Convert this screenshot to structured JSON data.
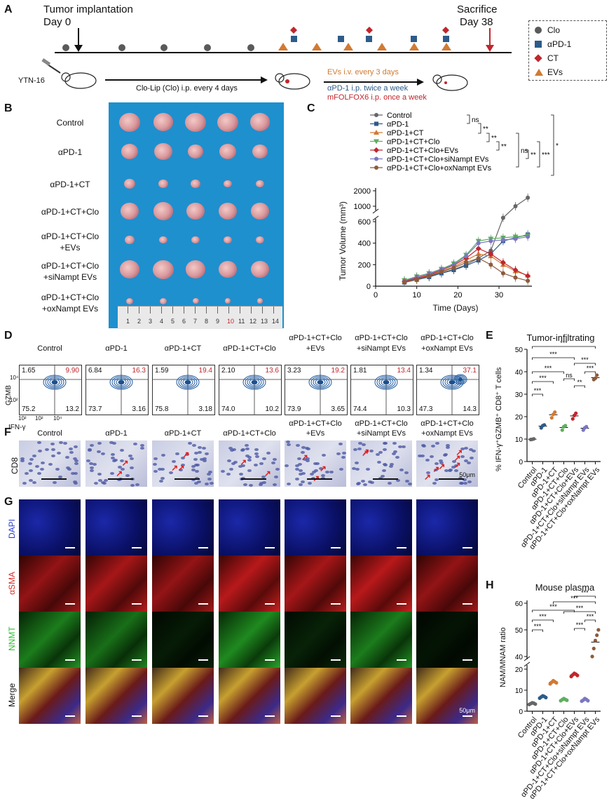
{
  "panels": {
    "A": "A",
    "B": "B",
    "C": "C",
    "D": "D",
    "E": "E",
    "F": "F",
    "G": "G",
    "H": "H"
  },
  "timeline": {
    "start_label1": "Tumor implantation",
    "start_label2": "Day 0",
    "end_label1": "Sacrifice",
    "end_label2": "Day 38",
    "cell_line": "YTN-16",
    "clo_text": "Clo-Lip (Clo) i.p. every 4 days",
    "evs_text": "EVs i.v. every 3 days",
    "pd1_text": "αPD-1 i.p. twice a week",
    "mfolfox_text": "mFOLFOX6 i.p. once a week",
    "colors": {
      "clo": "#5a5a5a",
      "pd1": "#2d5b8a",
      "ct": "#c0262d",
      "evs": "#d27a33",
      "arrow": "#c0262d"
    }
  },
  "legend": [
    {
      "label": "Clo",
      "shape": "circle-icon",
      "color": "#5a5a5a"
    },
    {
      "label": "αPD-1",
      "shape": "square-icon",
      "color": "#2d5b8a"
    },
    {
      "label": "CT",
      "shape": "diamond-icon",
      "color": "#c0262d"
    },
    {
      "label": "EVs",
      "shape": "triangle-icon",
      "color": "#d27a33"
    }
  ],
  "groups": [
    "Control",
    "αPD-1",
    "αPD-1+CT",
    "αPD-1+CT+Clo",
    "αPD-1+CT+Clo +EVs",
    "αPD-1+CT+Clo +siNampt EVs",
    "αPD-1+CT+Clo +oxNampt EVs"
  ],
  "groupsB": [
    {
      "l1": "Control",
      "l2": ""
    },
    {
      "l1": "αPD-1",
      "l2": ""
    },
    {
      "l1": "αPD-1+CT",
      "l2": ""
    },
    {
      "l1": "αPD-1+CT+Clo",
      "l2": ""
    },
    {
      "l1": "αPD-1+CT+Clo",
      "l2": "+EVs"
    },
    {
      "l1": "αPD-1+CT+Clo",
      "l2": "+siNampt EVs"
    },
    {
      "l1": "αPD-1+CT+Clo",
      "l2": "+oxNampt EVs"
    }
  ],
  "ruler_ticks": [
    "1",
    "2",
    "3",
    "4",
    "5",
    "6",
    "7",
    "8",
    "9",
    "10",
    "11",
    "12",
    "13",
    "14"
  ],
  "chart_data": [
    {
      "id": "C",
      "type": "line",
      "xlabel": "Time (Days)",
      "ylabel": "Tumor Volume (mm³)",
      "xlim": [
        0,
        38
      ],
      "x_ticks": [
        "0",
        "10",
        "20",
        "30"
      ],
      "y_ticks_low": [
        "0",
        "200",
        "400",
        "600"
      ],
      "y_ticks_high": [
        "1000",
        "2000"
      ],
      "x": [
        7,
        10,
        13,
        16,
        19,
        22,
        25,
        28,
        31,
        34,
        37
      ],
      "series": [
        {
          "name": "Control",
          "color": "#666666",
          "marker": "circle",
          "values": [
            40,
            65,
            90,
            125,
            155,
            200,
            260,
            330,
            700,
            1000,
            1550
          ]
        },
        {
          "name": "αPD-1",
          "color": "#2d5b8a",
          "marker": "square",
          "values": [
            35,
            60,
            85,
            120,
            150,
            190,
            240,
            300,
            420,
            450,
            480
          ]
        },
        {
          "name": "αPD-1+CT",
          "color": "#d27a33",
          "marker": "triangle",
          "values": [
            45,
            70,
            100,
            140,
            180,
            240,
            300,
            280,
            200,
            140,
            100
          ]
        },
        {
          "name": "αPD-1+CT+Clo",
          "color": "#5fae5f",
          "marker": "triangle-down",
          "values": [
            55,
            90,
            120,
            160,
            210,
            290,
            420,
            440,
            450,
            460,
            470
          ]
        },
        {
          "name": "αPD-1+CT+Clo+EVs",
          "color": "#c0262d",
          "marker": "diamond",
          "values": [
            45,
            75,
            105,
            150,
            195,
            260,
            350,
            300,
            220,
            150,
            95
          ]
        },
        {
          "name": "αPD-1+CT+Clo+siNampt EVs",
          "color": "#7a77c2",
          "marker": "circle",
          "values": [
            50,
            85,
            115,
            155,
            200,
            280,
            400,
            420,
            430,
            440,
            460
          ]
        },
        {
          "name": "αPD-1+CT+Clo+oxNampt EVs",
          "color": "#8c5b3c",
          "marker": "circle",
          "values": [
            40,
            65,
            95,
            135,
            170,
            220,
            260,
            200,
            120,
            80,
            50
          ]
        }
      ],
      "sig": [
        "ns",
        "**",
        "**",
        "**",
        "ns",
        "**",
        "***",
        "*"
      ]
    },
    {
      "id": "E",
      "type": "scatter",
      "title": "Tumor-infiltrating",
      "ylabel": "% IFN-γ⁺GZMB⁺ CD8⁺ T cells",
      "ylim": [
        0,
        50
      ],
      "y_ticks": [
        "0",
        "10",
        "20",
        "30",
        "40",
        "50"
      ],
      "categories": [
        "Control",
        "αPD-1",
        "αPD-1+CT",
        "αPD-1+CT+Clo",
        "αPD-1+CT+Clo+EVs",
        "αPD-1+CT+Clo+siNampt EVs",
        "αPD-1+CT+Clo+oxNampt EVs"
      ],
      "values": [
        [
          9.8,
          9.9,
          10.1
        ],
        [
          15,
          16,
          16.3
        ],
        [
          19.5,
          21,
          22
        ],
        [
          14,
          15.5,
          16
        ],
        [
          19,
          20.5,
          21.5
        ],
        [
          14,
          15,
          15.5
        ],
        [
          36.5,
          37.1,
          38.5
        ]
      ],
      "colors": [
        "#666666",
        "#2d5b8a",
        "#d27a33",
        "#5fae5f",
        "#c0262d",
        "#7a77c2",
        "#8c5b3c"
      ],
      "sig": [
        "***",
        "***",
        "***",
        "***",
        "ns",
        "**",
        "***",
        "***",
        "***"
      ]
    },
    {
      "id": "H",
      "type": "scatter",
      "title": "Mouse plasma",
      "ylabel": "NAM/MNAM ratio",
      "y_ticks_low": [
        "0",
        "10",
        "20"
      ],
      "y_ticks_high": [
        "40",
        "50",
        "60"
      ],
      "categories": [
        "Control",
        "αPD-1",
        "αPD-1+CT",
        "αPD-1+CT+Clo",
        "αPD-1+CT+Clo+EVs",
        "αPD-1+CT+Clo+siNampt EVs",
        "αPD-1+CT+Clo+oxNampt EVs"
      ],
      "values": [
        [
          3.2,
          3.6,
          4.0,
          3.8,
          3.4
        ],
        [
          6.2,
          6.8,
          7.3,
          7.0,
          6.5
        ],
        [
          13,
          13.8,
          14.5,
          14,
          13.5
        ],
        [
          5,
          5.5,
          6,
          5.6,
          5.2
        ],
        [
          16.5,
          17.3,
          18,
          17.6,
          17
        ],
        [
          4.8,
          5.3,
          6,
          5.6,
          5
        ],
        [
          40,
          43,
          46,
          48,
          50
        ]
      ],
      "colors": [
        "#666666",
        "#2d5b8a",
        "#d27a33",
        "#5fae5f",
        "#c0262d",
        "#7a77c2",
        "#8c5b3c"
      ],
      "sig": [
        "***",
        "***",
        "***",
        "***",
        "***",
        "***",
        "***",
        "***"
      ]
    }
  ],
  "flow": {
    "xlabel": "IFN-γ",
    "ylabel": "GZMB",
    "x_ticks": [
      "10²",
      "10²",
      "10⁴"
    ],
    "y_ticks": [
      "10⁴",
      "10²"
    ],
    "titles": [
      {
        "l1": "Control",
        "l2": ""
      },
      {
        "l1": "αPD-1",
        "l2": ""
      },
      {
        "l1": "αPD-1+CT",
        "l2": ""
      },
      {
        "l1": "αPD-1+CT+Clo",
        "l2": ""
      },
      {
        "l1": "αPD-1+CT+Clo",
        "l2": "+EVs"
      },
      {
        "l1": "αPD-1+CT+Clo",
        "l2": "+siNampt EVs"
      },
      {
        "l1": "αPD-1+CT+Clo",
        "l2": "+oxNampt EVs"
      }
    ],
    "quadrants": [
      {
        "ul": "1.65",
        "ur": "9.90",
        "ll": "75.2",
        "lr": "13.2"
      },
      {
        "ul": "6.84",
        "ur": "16.3",
        "ll": "73.7",
        "lr": "3.16"
      },
      {
        "ul": "1.59",
        "ur": "19.4",
        "ll": "75.8",
        "lr": "3.18"
      },
      {
        "ul": "2.10",
        "ur": "13.6",
        "ll": "74.0",
        "lr": "10.2"
      },
      {
        "ul": "3.23",
        "ur": "19.2",
        "ll": "73.9",
        "lr": "3.65"
      },
      {
        "ul": "1.81",
        "ur": "13.4",
        "ll": "74.4",
        "lr": "10.3"
      },
      {
        "ul": "1.34",
        "ur": "37.1",
        "ll": "47.3",
        "lr": "14.3"
      }
    ],
    "ur_color": "#c0262d"
  },
  "ihc": {
    "row_label": "CD8",
    "scale": "50μm",
    "titles": [
      {
        "l1": "Control",
        "l2": ""
      },
      {
        "l1": "αPD-1",
        "l2": ""
      },
      {
        "l1": "αPD-1+CT",
        "l2": ""
      },
      {
        "l1": "αPD-1+CT+Clo",
        "l2": ""
      },
      {
        "l1": "αPD-1+CT+Clo",
        "l2": "+EVs"
      },
      {
        "l1": "αPD-1+CT+Clo",
        "l2": "+siNampt EVs"
      },
      {
        "l1": "αPD-1+CT+Clo",
        "l2": "+oxNampt EVs"
      }
    ]
  },
  "ifrows": [
    {
      "label": "DAPI",
      "color": "#2a3ed6"
    },
    {
      "label": "αSMA",
      "color": "#d6302a"
    },
    {
      "label": "NNMT",
      "color": "#2fbf2f"
    },
    {
      "label": "Merge",
      "color": "#111111"
    }
  ],
  "if_scale": "50μm"
}
